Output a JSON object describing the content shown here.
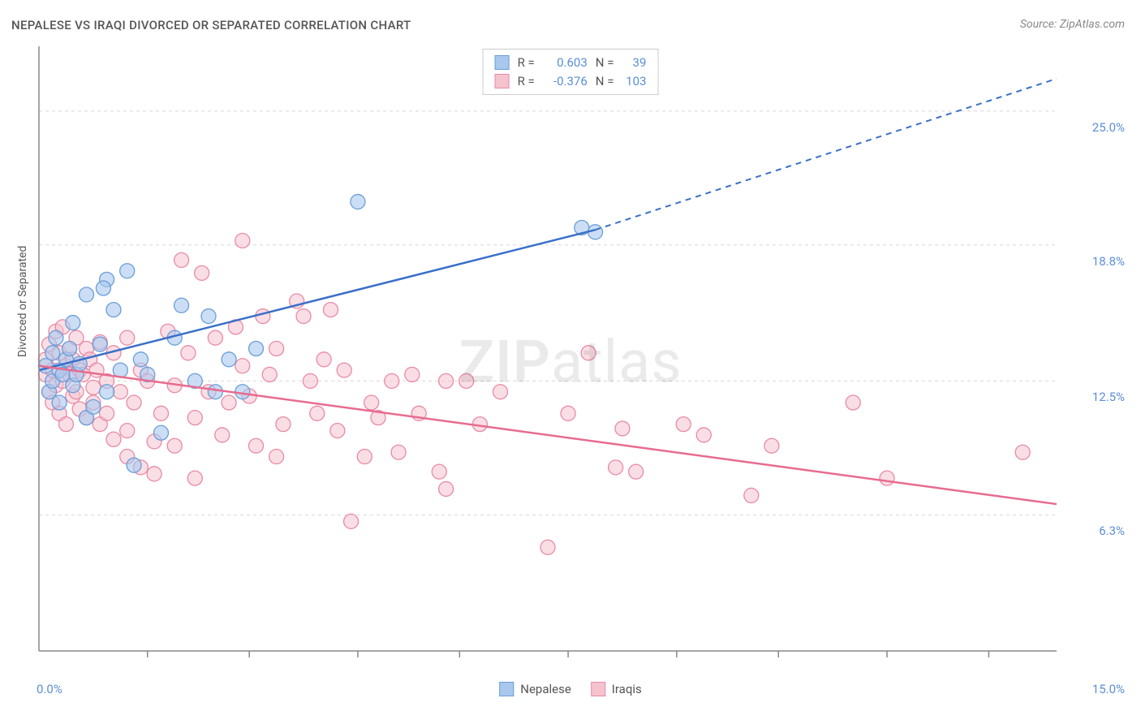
{
  "title": "NEPALESE VS IRAQI DIVORCED OR SEPARATED CORRELATION CHART",
  "source": "Source: ZipAtlas.com",
  "y_axis_label": "Divorced or Separated",
  "watermark_a": "ZIP",
  "watermark_b": "atlas",
  "chart": {
    "type": "scatter-with-regression",
    "xlim": [
      0.0,
      15.0
    ],
    "ylim": [
      0.0,
      28.0
    ],
    "y_ticks": [
      6.3,
      12.5,
      18.8,
      25.0
    ],
    "x_ticks_visible": [
      0.0,
      15.0
    ],
    "x_minor_ticks": [
      1.6,
      3.1,
      4.7,
      6.2,
      7.8,
      9.4,
      10.9,
      12.5,
      14.0
    ],
    "background_color": "#ffffff",
    "grid_color": "#d8d8d8",
    "grid_dash": "4 4",
    "axis_color": "#888888",
    "series_a": {
      "name": "Nepalese",
      "fill": "#a8c8ee",
      "stroke": "#6a9ed8",
      "line_color": "#3a6fc9",
      "r_value": "0.603",
      "n_value": "39",
      "regression": {
        "x1": 0.0,
        "y1": 13.0,
        "x2": 8.2,
        "y2": 19.5,
        "dash_x2": 15.0,
        "dash_y2": 26.5
      },
      "points": [
        [
          0.1,
          13.2
        ],
        [
          0.15,
          12.0
        ],
        [
          0.2,
          13.8
        ],
        [
          0.2,
          12.5
        ],
        [
          0.25,
          14.5
        ],
        [
          0.3,
          11.5
        ],
        [
          0.3,
          13.0
        ],
        [
          0.35,
          12.8
        ],
        [
          0.4,
          13.5
        ],
        [
          0.45,
          14.0
        ],
        [
          0.5,
          12.3
        ],
        [
          0.5,
          15.2
        ],
        [
          0.55,
          12.8
        ],
        [
          0.6,
          13.3
        ],
        [
          0.7,
          16.5
        ],
        [
          0.7,
          10.8
        ],
        [
          0.8,
          11.3
        ],
        [
          0.9,
          14.2
        ],
        [
          1.0,
          17.2
        ],
        [
          1.0,
          12.0
        ],
        [
          1.1,
          15.8
        ],
        [
          1.2,
          13.0
        ],
        [
          1.3,
          17.6
        ],
        [
          1.4,
          8.6
        ],
        [
          1.5,
          13.5
        ],
        [
          1.6,
          12.8
        ],
        [
          1.8,
          10.1
        ],
        [
          2.0,
          14.5
        ],
        [
          2.1,
          16.0
        ],
        [
          2.3,
          12.5
        ],
        [
          2.5,
          15.5
        ],
        [
          2.6,
          12.0
        ],
        [
          2.8,
          13.5
        ],
        [
          3.0,
          12.0
        ],
        [
          3.2,
          14.0
        ],
        [
          4.7,
          20.8
        ],
        [
          8.0,
          19.6
        ],
        [
          8.2,
          19.4
        ],
        [
          0.95,
          16.8
        ]
      ]
    },
    "series_b": {
      "name": "Iraqis",
      "fill": "#f5c3d0",
      "stroke": "#e98aa4",
      "line_color": "#e86b8f",
      "r_value": "-0.376",
      "n_value": "103",
      "regression": {
        "x1": 0.0,
        "y1": 13.2,
        "x2": 15.0,
        "y2": 6.8
      },
      "points": [
        [
          0.1,
          12.8
        ],
        [
          0.1,
          13.5
        ],
        [
          0.15,
          12.0
        ],
        [
          0.15,
          14.2
        ],
        [
          0.2,
          11.5
        ],
        [
          0.2,
          13.0
        ],
        [
          0.25,
          14.8
        ],
        [
          0.25,
          12.3
        ],
        [
          0.3,
          13.8
        ],
        [
          0.3,
          11.0
        ],
        [
          0.35,
          12.5
        ],
        [
          0.35,
          15.0
        ],
        [
          0.4,
          13.2
        ],
        [
          0.4,
          10.5
        ],
        [
          0.45,
          14.0
        ],
        [
          0.45,
          12.8
        ],
        [
          0.5,
          11.8
        ],
        [
          0.5,
          13.5
        ],
        [
          0.55,
          12.0
        ],
        [
          0.55,
          14.5
        ],
        [
          0.6,
          13.0
        ],
        [
          0.6,
          11.2
        ],
        [
          0.65,
          12.8
        ],
        [
          0.7,
          14.0
        ],
        [
          0.7,
          10.8
        ],
        [
          0.75,
          13.5
        ],
        [
          0.8,
          12.2
        ],
        [
          0.8,
          11.5
        ],
        [
          0.85,
          13.0
        ],
        [
          0.9,
          14.3
        ],
        [
          0.9,
          10.5
        ],
        [
          1.0,
          12.5
        ],
        [
          1.0,
          11.0
        ],
        [
          1.1,
          13.8
        ],
        [
          1.1,
          9.8
        ],
        [
          1.2,
          12.0
        ],
        [
          1.3,
          14.5
        ],
        [
          1.3,
          10.2
        ],
        [
          1.4,
          11.5
        ],
        [
          1.5,
          13.0
        ],
        [
          1.5,
          8.5
        ],
        [
          1.6,
          12.5
        ],
        [
          1.7,
          9.7
        ],
        [
          1.7,
          8.2
        ],
        [
          1.8,
          11.0
        ],
        [
          1.9,
          14.8
        ],
        [
          2.0,
          12.3
        ],
        [
          2.0,
          9.5
        ],
        [
          2.1,
          18.1
        ],
        [
          2.2,
          13.8
        ],
        [
          2.3,
          10.8
        ],
        [
          2.4,
          17.5
        ],
        [
          2.5,
          12.0
        ],
        [
          2.6,
          14.5
        ],
        [
          2.7,
          10.0
        ],
        [
          2.8,
          11.5
        ],
        [
          2.9,
          15.0
        ],
        [
          3.0,
          13.2
        ],
        [
          3.0,
          19.0
        ],
        [
          3.1,
          11.8
        ],
        [
          3.2,
          9.5
        ],
        [
          3.3,
          15.5
        ],
        [
          3.4,
          12.8
        ],
        [
          3.5,
          14.0
        ],
        [
          3.6,
          10.5
        ],
        [
          3.8,
          16.2
        ],
        [
          3.9,
          15.5
        ],
        [
          4.0,
          12.5
        ],
        [
          4.1,
          11.0
        ],
        [
          4.3,
          15.8
        ],
        [
          4.4,
          10.2
        ],
        [
          4.5,
          13.0
        ],
        [
          4.6,
          6.0
        ],
        [
          4.8,
          9.0
        ],
        [
          4.9,
          11.5
        ],
        [
          5.0,
          10.8
        ],
        [
          5.2,
          12.5
        ],
        [
          5.3,
          9.2
        ],
        [
          5.5,
          12.8
        ],
        [
          5.6,
          11.0
        ],
        [
          5.9,
          8.3
        ],
        [
          6.0,
          12.5
        ],
        [
          6.0,
          7.5
        ],
        [
          6.3,
          12.5
        ],
        [
          6.5,
          10.5
        ],
        [
          6.8,
          12.0
        ],
        [
          7.5,
          4.8
        ],
        [
          7.8,
          11.0
        ],
        [
          8.1,
          13.8
        ],
        [
          8.5,
          8.5
        ],
        [
          8.6,
          10.3
        ],
        [
          8.8,
          8.3
        ],
        [
          9.5,
          10.5
        ],
        [
          9.8,
          10.0
        ],
        [
          10.8,
          9.5
        ],
        [
          10.5,
          7.2
        ],
        [
          12.0,
          11.5
        ],
        [
          12.5,
          8.0
        ],
        [
          14.5,
          9.2
        ],
        [
          2.3,
          8.0
        ],
        [
          3.5,
          9.0
        ],
        [
          4.2,
          13.5
        ],
        [
          1.3,
          9.0
        ]
      ]
    }
  },
  "y_tick_labels": {
    "t0": "6.3%",
    "t1": "12.5%",
    "t2": "18.8%",
    "t3": "25.0%"
  },
  "x_tick_labels": {
    "t0": "0.0%",
    "t1": "15.0%"
  },
  "legend_top": {
    "r_lbl": "R =",
    "n_lbl": "N ="
  }
}
